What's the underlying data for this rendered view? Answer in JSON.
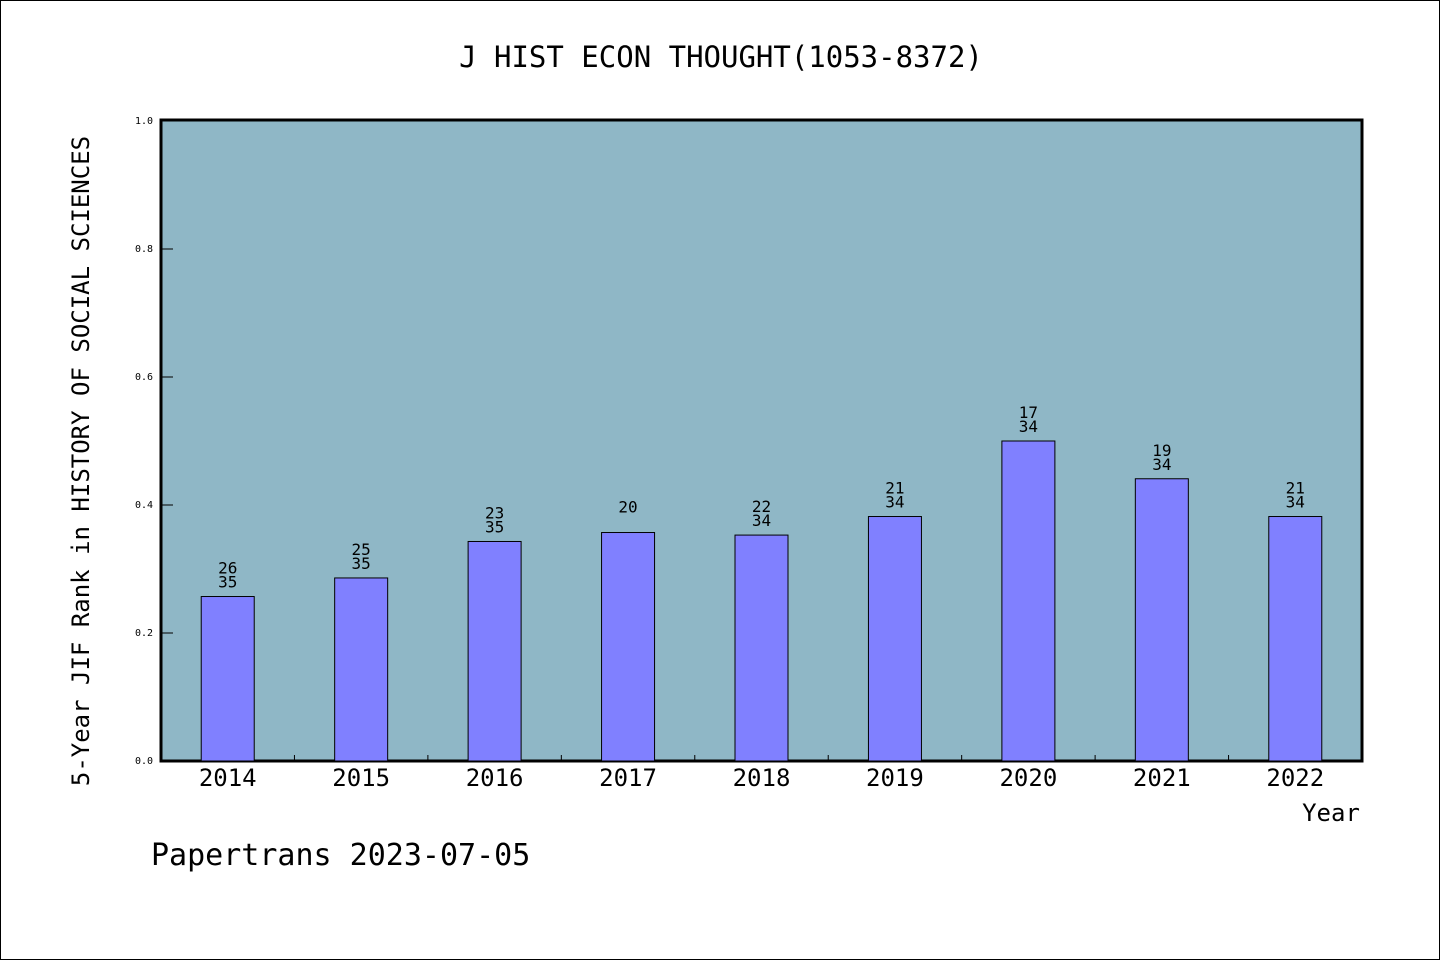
{
  "chart_data": {
    "type": "bar",
    "title": "J HIST ECON THOUGHT(1053-8372)",
    "xlabel": "Year",
    "ylabel": "5-Year JIF Rank in HISTORY OF SOCIAL SCIENCES",
    "ylim": [
      0,
      1.0
    ],
    "yticks": [
      "0.0",
      "0.2",
      "0.4",
      "0.6",
      "0.8",
      "1.0"
    ],
    "categories": [
      "2014",
      "2015",
      "2016",
      "2017",
      "2018",
      "2019",
      "2020",
      "2021",
      "2022"
    ],
    "values": [
      0.257,
      0.286,
      0.343,
      0.357,
      0.353,
      0.382,
      0.5,
      0.441,
      0.382
    ],
    "labels_top": [
      "26",
      "25",
      "23",
      "20",
      "22",
      "21",
      "17",
      "19",
      "21"
    ],
    "labels_bottom": [
      "35",
      "35",
      "35",
      "",
      "34",
      "34",
      "34",
      "34",
      "34"
    ],
    "colors": {
      "bar": "#8080ff",
      "plot_bg": "#8fb7c6"
    },
    "grid": false
  },
  "footer": "Papertrans 2023-07-05"
}
